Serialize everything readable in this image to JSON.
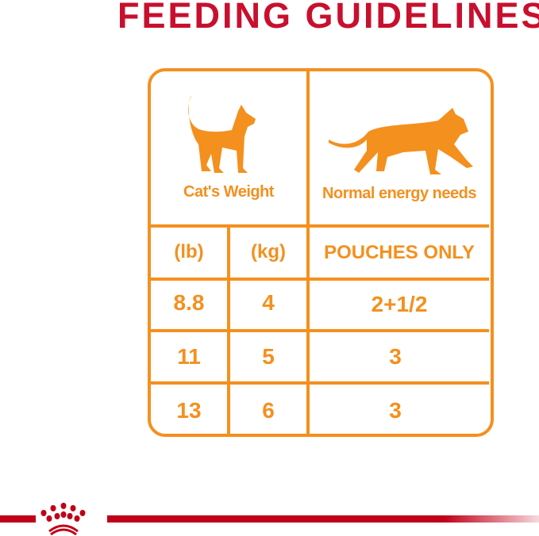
{
  "title": "FEEDING GUIDELINES",
  "header": {
    "left": "Cat's Weight",
    "right": "Normal energy needs"
  },
  "columns": [
    "(lb)",
    "(kg)",
    "POUCHES ONLY"
  ],
  "rows": [
    {
      "lb": "8.8",
      "kg": "4",
      "pouches": "2+1/2"
    },
    {
      "lb": "11",
      "kg": "5",
      "pouches": "3"
    },
    {
      "lb": "13",
      "kg": "6",
      "pouches": "3"
    }
  ],
  "colors": {
    "orange": "#f4901e",
    "red": "#c8102e"
  },
  "icons": [
    "sitting-cat-icon",
    "walking-cat-icon",
    "royal-canin-crown-logo"
  ]
}
